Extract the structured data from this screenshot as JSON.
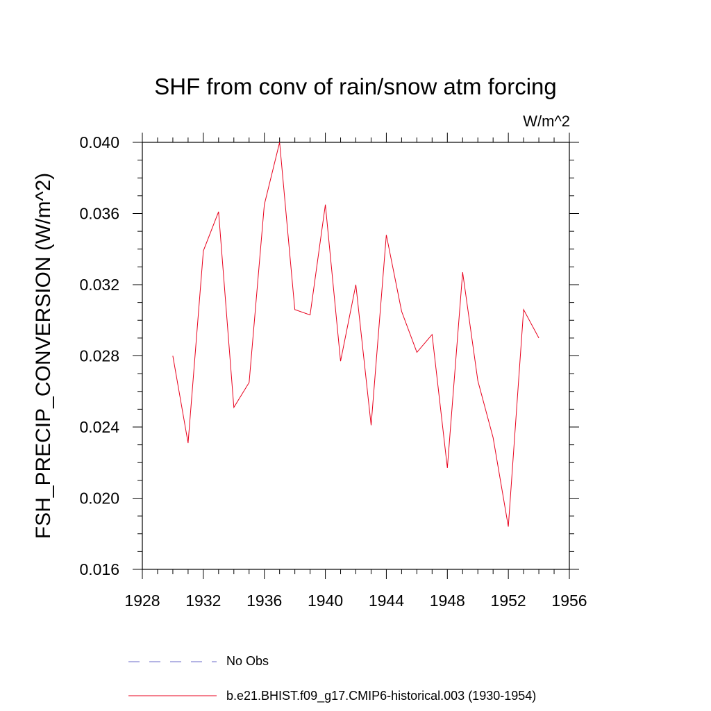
{
  "chart_data": {
    "type": "line",
    "title": "SHF from conv of rain/snow atm forcing",
    "units_label": "W/m^2",
    "ylabel": "FSH_PRECIP_CONVERSION  (W/m^2)",
    "xlabel": "",
    "xlim": [
      1928,
      1956
    ],
    "ylim": [
      0.016,
      0.04
    ],
    "x_ticks": [
      "1928",
      "1932",
      "1936",
      "1940",
      "1944",
      "1948",
      "1952",
      "1956"
    ],
    "y_ticks": [
      "0.016",
      "0.020",
      "0.024",
      "0.028",
      "0.032",
      "0.036",
      "0.040"
    ],
    "series": [
      {
        "name": "b.e21.BHIST.f09_g17.CMIP6-historical.003 (1930-1954)",
        "color": "#e8001c",
        "style": "solid",
        "x": [
          1930,
          1931,
          1932,
          1933,
          1934,
          1935,
          1936,
          1937,
          1938,
          1939,
          1940,
          1941,
          1942,
          1943,
          1944,
          1945,
          1946,
          1947,
          1948,
          1949,
          1950,
          1951,
          1952,
          1953,
          1954
        ],
        "values": [
          0.028,
          0.0231,
          0.0339,
          0.0361,
          0.0251,
          0.0265,
          0.0365,
          0.04,
          0.0306,
          0.0303,
          0.0365,
          0.0277,
          0.032,
          0.0241,
          0.0348,
          0.0305,
          0.0282,
          0.0292,
          0.0217,
          0.0327,
          0.0266,
          0.0234,
          0.0184,
          0.0306,
          0.029
        ]
      }
    ],
    "legend": [
      {
        "label": "No Obs",
        "color": "#6a6ac8",
        "style": "dashed"
      },
      {
        "label": "b.e21.BHIST.f09_g17.CMIP6-historical.003 (1930-1954)",
        "color": "#e8001c",
        "style": "solid"
      }
    ]
  }
}
